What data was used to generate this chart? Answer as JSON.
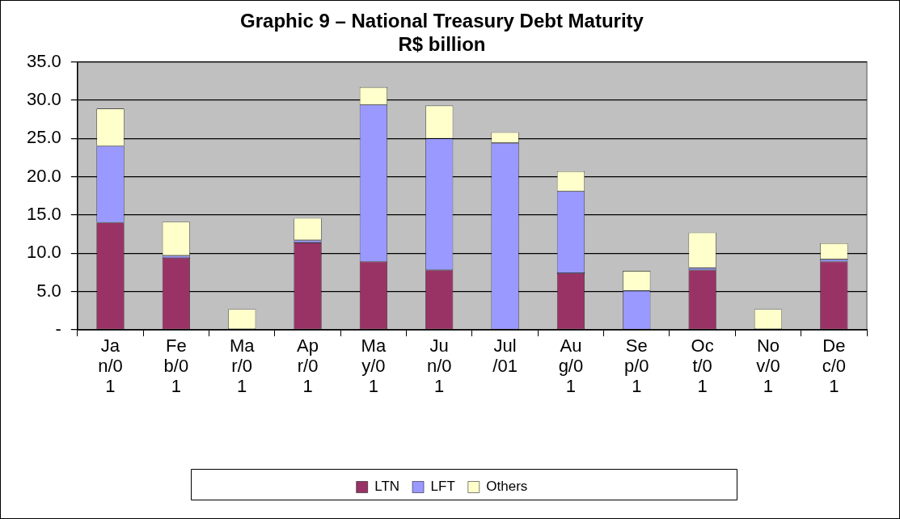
{
  "chart_data": {
    "type": "bar",
    "title": "Graphic 9 – National Treasury Debt Maturity",
    "subtitle": "R$ billion",
    "categories": [
      "Jan/01",
      "Feb/01",
      "Mar/01",
      "Apr/01",
      "May/01",
      "Jun/01",
      "Jul/01",
      "Aug/01",
      "Sep/01",
      "Oct/01",
      "Nov/01",
      "Dec/01"
    ],
    "stacked": true,
    "series": [
      {
        "name": "LTN",
        "color": "#993366",
        "values": [
          14.0,
          9.4,
          0.1,
          11.4,
          8.9,
          7.8,
          0,
          7.4,
          0,
          7.8,
          0.1,
          8.9
        ]
      },
      {
        "name": "LFT",
        "color": "#9999ff",
        "values": [
          10.0,
          0.3,
          0,
          0.3,
          20.5,
          17.2,
          24.4,
          10.7,
          5.1,
          0.3,
          0,
          0.3
        ]
      },
      {
        "name": "Others",
        "color": "#ffffcc",
        "values": [
          4.9,
          4.4,
          2.6,
          2.9,
          2.3,
          4.3,
          1.4,
          2.6,
          2.6,
          4.6,
          2.6,
          2.1
        ]
      }
    ],
    "ylim": [
      0,
      35
    ],
    "yticks": [
      {
        "value": 0,
        "label": "-"
      },
      {
        "value": 5,
        "label": "5.0"
      },
      {
        "value": 10,
        "label": "10.0"
      },
      {
        "value": 15,
        "label": "15.0"
      },
      {
        "value": 20,
        "label": "20.0"
      },
      {
        "value": 25,
        "label": "25.0"
      },
      {
        "value": 30,
        "label": "30.0"
      },
      {
        "value": 35,
        "label": "35.0"
      }
    ],
    "grid": "y",
    "legend": "bottom"
  }
}
